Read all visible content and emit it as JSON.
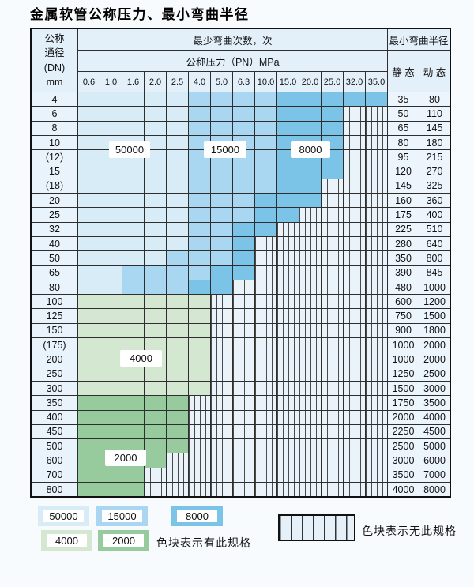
{
  "title": "金属软管公称压力、最小弯曲半径",
  "header": {
    "dn_lines": [
      "公称",
      "通径",
      "(DN)",
      "mm"
    ],
    "cycles": "最少弯曲次数，次",
    "pressure": "公称压力（PN）MPa",
    "radius": "最小弯曲半径",
    "static": "静 态",
    "dynamic": "动 态",
    "pressures": [
      "0.6",
      "1.0",
      "1.6",
      "2.0",
      "2.5",
      "4.0",
      "5.0",
      "6.3",
      "10.0",
      "15.0",
      "20.0",
      "25.0",
      "32.0",
      "35.0"
    ]
  },
  "cell_legend": {
    "b50": "50000次",
    "b15": "15000次",
    "b8": "8000次",
    "g4": "4000次",
    "g2": "2000次",
    "x": "无此规格"
  },
  "rows": [
    {
      "dn": "4",
      "static": "35",
      "dynamic": "80",
      "cells": [
        "b50",
        "b50",
        "b50",
        "b50",
        "b50",
        "b15",
        "b15",
        "b15",
        "b15",
        "b8",
        "b8",
        "b8",
        "b8",
        "b8"
      ]
    },
    {
      "dn": "6",
      "static": "50",
      "dynamic": "110",
      "cells": [
        "b50",
        "b50",
        "b50",
        "b50",
        "b50",
        "b15",
        "b15",
        "b15",
        "b15",
        "b8",
        "b8",
        "b8",
        "x",
        "x"
      ]
    },
    {
      "dn": "8",
      "static": "65",
      "dynamic": "145",
      "cells": [
        "b50",
        "b50",
        "b50",
        "b50",
        "b50",
        "b15",
        "b15",
        "b15",
        "b15",
        "b8",
        "b8",
        "b8",
        "x",
        "x"
      ]
    },
    {
      "dn": "10",
      "static": "80",
      "dynamic": "180",
      "cells": [
        "b50",
        "b50",
        "b50",
        "b50",
        "b50",
        "b15",
        "b15",
        "b15",
        "b15",
        "b8",
        "b8",
        "b8",
        "x",
        "x"
      ]
    },
    {
      "dn": "(12)",
      "static": "95",
      "dynamic": "215",
      "cells": [
        "b50",
        "b50",
        "b50",
        "b50",
        "b50",
        "b15",
        "b15",
        "b15",
        "b15",
        "b8",
        "b8",
        "b8",
        "x",
        "x"
      ]
    },
    {
      "dn": "15",
      "static": "120",
      "dynamic": "270",
      "cells": [
        "b50",
        "b50",
        "b50",
        "b50",
        "b50",
        "b15",
        "b15",
        "b15",
        "b15",
        "b8",
        "b8",
        "b8",
        "x",
        "x"
      ]
    },
    {
      "dn": "(18)",
      "static": "145",
      "dynamic": "325",
      "cells": [
        "b50",
        "b50",
        "b50",
        "b50",
        "b50",
        "b15",
        "b15",
        "b15",
        "b15",
        "b8",
        "b8",
        "x",
        "x",
        "x"
      ]
    },
    {
      "dn": "20",
      "static": "160",
      "dynamic": "360",
      "cells": [
        "b50",
        "b50",
        "b50",
        "b50",
        "b50",
        "b15",
        "b15",
        "b15",
        "b8",
        "b8",
        "b8",
        "x",
        "x",
        "x"
      ]
    },
    {
      "dn": "25",
      "static": "175",
      "dynamic": "400",
      "cells": [
        "b50",
        "b50",
        "b50",
        "b50",
        "b50",
        "b15",
        "b15",
        "b15",
        "b8",
        "b8",
        "x",
        "x",
        "x",
        "x"
      ]
    },
    {
      "dn": "32",
      "static": "225",
      "dynamic": "510",
      "cells": [
        "b50",
        "b50",
        "b50",
        "b50",
        "b50",
        "b15",
        "b15",
        "b8",
        "b8",
        "x",
        "x",
        "x",
        "x",
        "x"
      ]
    },
    {
      "dn": "40",
      "static": "280",
      "dynamic": "640",
      "cells": [
        "b50",
        "b50",
        "b50",
        "b50",
        "b50",
        "b15",
        "b15",
        "b8",
        "x",
        "x",
        "x",
        "x",
        "x",
        "x"
      ]
    },
    {
      "dn": "50",
      "static": "350",
      "dynamic": "800",
      "cells": [
        "b50",
        "b50",
        "b50",
        "b50",
        "b15",
        "b15",
        "b15",
        "b8",
        "x",
        "x",
        "x",
        "x",
        "x",
        "x"
      ]
    },
    {
      "dn": "65",
      "static": "390",
      "dynamic": "845",
      "cells": [
        "b50",
        "b50",
        "b15",
        "b15",
        "b15",
        "b15",
        "b8",
        "b8",
        "x",
        "x",
        "x",
        "x",
        "x",
        "x"
      ]
    },
    {
      "dn": "80",
      "static": "480",
      "dynamic": "1000",
      "cells": [
        "b50",
        "b50",
        "b15",
        "b15",
        "b15",
        "b8",
        "b8",
        "x",
        "x",
        "x",
        "x",
        "x",
        "x",
        "x"
      ]
    },
    {
      "dn": "100",
      "static": "600",
      "dynamic": "1200",
      "cells": [
        "g4",
        "g4",
        "g4",
        "g4",
        "g4",
        "g4",
        "x",
        "x",
        "x",
        "x",
        "x",
        "x",
        "x",
        "x"
      ]
    },
    {
      "dn": "125",
      "static": "750",
      "dynamic": "1500",
      "cells": [
        "g4",
        "g4",
        "g4",
        "g4",
        "g4",
        "g4",
        "x",
        "x",
        "x",
        "x",
        "x",
        "x",
        "x",
        "x"
      ]
    },
    {
      "dn": "150",
      "static": "900",
      "dynamic": "1800",
      "cells": [
        "g4",
        "g4",
        "g4",
        "g4",
        "g4",
        "g4",
        "x",
        "x",
        "x",
        "x",
        "x",
        "x",
        "x",
        "x"
      ]
    },
    {
      "dn": "(175)",
      "static": "1000",
      "dynamic": "2000",
      "cells": [
        "g4",
        "g4",
        "g4",
        "g4",
        "g4",
        "g4",
        "x",
        "x",
        "x",
        "x",
        "x",
        "x",
        "x",
        "x"
      ]
    },
    {
      "dn": "200",
      "static": "1000",
      "dynamic": "2000",
      "cells": [
        "g4",
        "g4",
        "g4",
        "g4",
        "g4",
        "g4",
        "x",
        "x",
        "x",
        "x",
        "x",
        "x",
        "x",
        "x"
      ]
    },
    {
      "dn": "250",
      "static": "1250",
      "dynamic": "2500",
      "cells": [
        "g4",
        "g4",
        "g4",
        "g4",
        "g4",
        "g4",
        "x",
        "x",
        "x",
        "x",
        "x",
        "x",
        "x",
        "x"
      ]
    },
    {
      "dn": "300",
      "static": "1500",
      "dynamic": "3000",
      "cells": [
        "g4",
        "g4",
        "g4",
        "g4",
        "g4",
        "g4",
        "x",
        "x",
        "x",
        "x",
        "x",
        "x",
        "x",
        "x"
      ]
    },
    {
      "dn": "350",
      "static": "1750",
      "dynamic": "3500",
      "cells": [
        "g2",
        "g2",
        "g2",
        "g2",
        "g2",
        "x",
        "x",
        "x",
        "x",
        "x",
        "x",
        "x",
        "x",
        "x"
      ]
    },
    {
      "dn": "400",
      "static": "2000",
      "dynamic": "4000",
      "cells": [
        "g2",
        "g2",
        "g2",
        "g2",
        "g2",
        "x",
        "x",
        "x",
        "x",
        "x",
        "x",
        "x",
        "x",
        "x"
      ]
    },
    {
      "dn": "450",
      "static": "2250",
      "dynamic": "4500",
      "cells": [
        "g2",
        "g2",
        "g2",
        "g2",
        "g2",
        "x",
        "x",
        "x",
        "x",
        "x",
        "x",
        "x",
        "x",
        "x"
      ]
    },
    {
      "dn": "500",
      "static": "2500",
      "dynamic": "5000",
      "cells": [
        "g2",
        "g2",
        "g2",
        "g2",
        "g2",
        "x",
        "x",
        "x",
        "x",
        "x",
        "x",
        "x",
        "x",
        "x"
      ]
    },
    {
      "dn": "600",
      "static": "3000",
      "dynamic": "6000",
      "cells": [
        "g2",
        "g2",
        "g2",
        "g2",
        "x",
        "x",
        "x",
        "x",
        "x",
        "x",
        "x",
        "x",
        "x",
        "x"
      ]
    },
    {
      "dn": "700",
      "static": "3500",
      "dynamic": "7000",
      "cells": [
        "g2",
        "g2",
        "g2",
        "x",
        "x",
        "x",
        "x",
        "x",
        "x",
        "x",
        "x",
        "x",
        "x",
        "x"
      ]
    },
    {
      "dn": "800",
      "static": "4000",
      "dynamic": "8000",
      "cells": [
        "g2",
        "g2",
        "g2",
        "x",
        "x",
        "x",
        "x",
        "x",
        "x",
        "x",
        "x",
        "x",
        "x",
        "x"
      ]
    }
  ],
  "legend": {
    "items": [
      {
        "label": "50000",
        "color": "#D8ECF8"
      },
      {
        "label": "15000",
        "color": "#A9D6F0"
      },
      {
        "label": "8000",
        "color": "#7CC3E8"
      },
      {
        "label": "4000",
        "color": "#D4E8D1"
      },
      {
        "label": "2000",
        "color": "#97CA9C"
      }
    ],
    "has_spec_note": "色块表示有此规格",
    "no_spec_note": "色块表示无此规格"
  },
  "colors": {
    "c50000": "#D8ECF8",
    "c15000": "#A9D6F0",
    "c8000": "#7CC3E8",
    "c4000": "#D4E8D1",
    "c2000": "#97CA9C",
    "no_spec_bg": "#EAF2FA",
    "hatch_line": "#4B4B4B",
    "grid_line": "#2E2E2E",
    "header_bg": "#E3F0FA",
    "dn_col_bg": "#E9F3FB",
    "radius_col_bg": "#EDF5FC",
    "page_bg": "#F8FBFD"
  }
}
